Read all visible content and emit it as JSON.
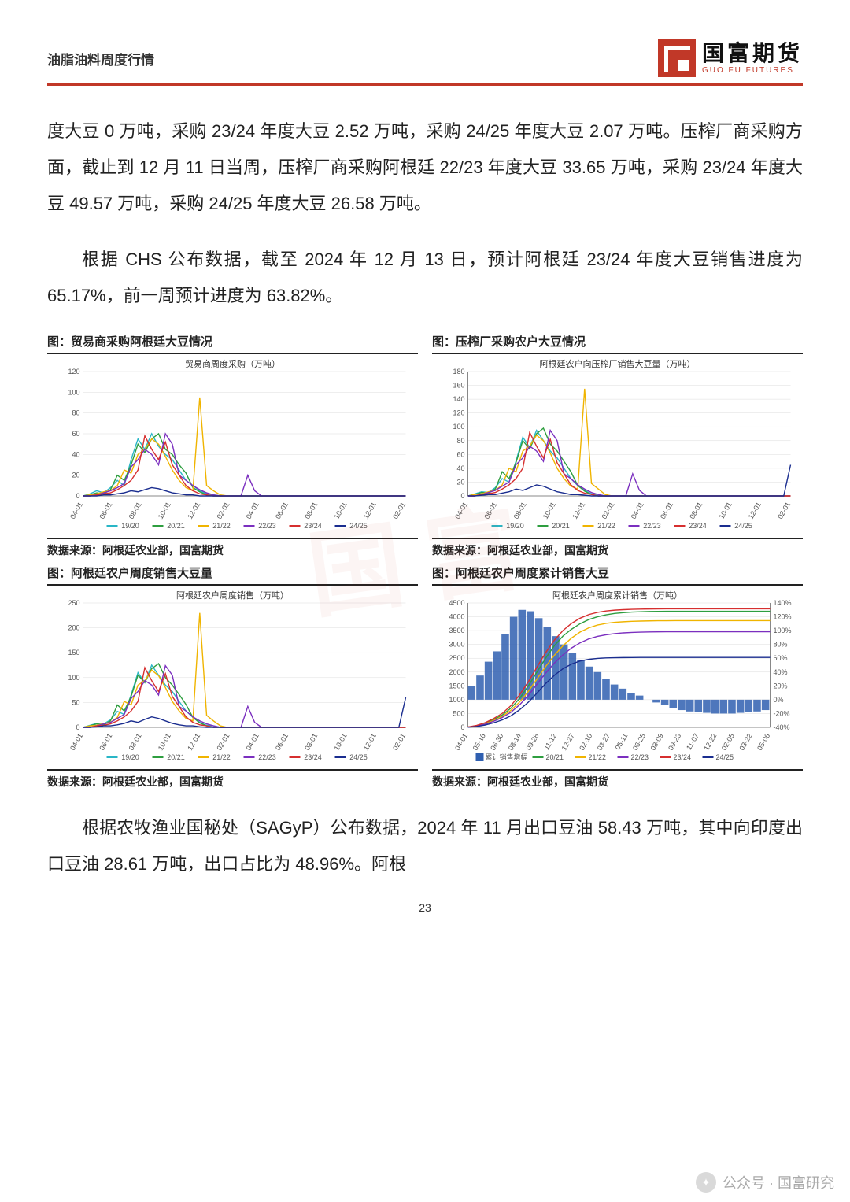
{
  "header": {
    "title": "油脂油料周度行情"
  },
  "logo": {
    "cn": "国富期货",
    "en": "GUO FU FUTURES"
  },
  "paragraphs": {
    "p1": "度大豆 0 万吨，采购 23/24 年度大豆 2.52 万吨，采购 24/25 年度大豆 2.07 万吨。压榨厂商采购方面，截止到 12 月 11 日当周，压榨厂商采购阿根廷 22/23 年度大豆 33.65 万吨，采购 23/24 年度大豆 49.57 万吨，采购 24/25 年度大豆 26.58 万吨。",
    "p2": "根据 CHS 公布数据，截至 2024 年 12 月 13 日，预计阿根廷 23/24 年度大豆销售进度为 65.17%，前一周预计进度为 63.82%。",
    "p3": "根据农牧渔业国秘处（SAGyP）公布数据，2024 年 11 月出口豆油 58.43 万吨，其中向印度出口豆油 28.61 万吨，出口占比为 48.96%。阿根"
  },
  "sourceLabel": "数据来源：阿根廷农业部，国富期货",
  "seriesColors": {
    "s1920": "#29b6c6",
    "s2021": "#2e9e3f",
    "s2122": "#f0b400",
    "s2223": "#7b2fbf",
    "s2324": "#d62f2f",
    "s2425": "#1a2d8f"
  },
  "seriesLabels": [
    "19/20",
    "20/21",
    "21/22",
    "22/23",
    "23/24",
    "24/25"
  ],
  "xTicks": [
    "04-01",
    "06-01",
    "08-01",
    "10-01",
    "12-01",
    "02-01",
    "04-01",
    "06-01",
    "08-01",
    "10-01",
    "12-01",
    "02-01"
  ],
  "chart1": {
    "title": "图：贸易商采购阿根廷大豆情况",
    "subtitle": "贸易商周度采购（万吨）",
    "ylim": [
      0,
      120
    ],
    "ytick": 20,
    "data": {
      "s1920": [
        0,
        2,
        5,
        3,
        8,
        15,
        10,
        35,
        55,
        45,
        60,
        48,
        40,
        35,
        25,
        15,
        10,
        5,
        2,
        1,
        0,
        0,
        0,
        0,
        0,
        0,
        0,
        0,
        0,
        0,
        0,
        0,
        0,
        0,
        0,
        0,
        0,
        0,
        0,
        0,
        0,
        0,
        0,
        0,
        0,
        0,
        0,
        0
      ],
      "s2021": [
        0,
        1,
        3,
        2,
        6,
        20,
        15,
        30,
        50,
        42,
        55,
        60,
        45,
        40,
        30,
        22,
        8,
        4,
        1,
        0,
        0,
        0,
        0,
        0,
        0,
        0,
        0,
        0,
        0,
        0,
        0,
        0,
        0,
        0,
        0,
        0,
        0,
        0,
        0,
        0,
        0,
        0,
        0,
        0,
        0,
        0,
        0,
        0
      ],
      "s2122": [
        0,
        1,
        2,
        4,
        5,
        10,
        25,
        22,
        40,
        45,
        55,
        50,
        38,
        25,
        15,
        8,
        5,
        95,
        10,
        5,
        1,
        0,
        0,
        0,
        0,
        0,
        0,
        0,
        0,
        0,
        0,
        0,
        0,
        0,
        0,
        0,
        0,
        0,
        0,
        0,
        0,
        0,
        0,
        0,
        0,
        0,
        0,
        0
      ],
      "s2223": [
        0,
        0,
        1,
        3,
        5,
        8,
        12,
        28,
        35,
        45,
        40,
        30,
        60,
        50,
        20,
        15,
        10,
        6,
        3,
        1,
        0,
        0,
        0,
        0,
        20,
        5,
        0,
        0,
        0,
        0,
        0,
        0,
        0,
        0,
        0,
        0,
        0,
        0,
        0,
        0,
        0,
        0,
        0,
        0,
        0,
        0,
        0,
        0
      ],
      "s2324": [
        0,
        0,
        1,
        2,
        3,
        6,
        10,
        15,
        25,
        58,
        45,
        35,
        52,
        30,
        20,
        10,
        5,
        2,
        1,
        0,
        0,
        0,
        0,
        0,
        0,
        0,
        0,
        0,
        0,
        0,
        0,
        0,
        0,
        0,
        0,
        0,
        0,
        0,
        0,
        0,
        0,
        0,
        0,
        0,
        0,
        0,
        0,
        0
      ],
      "s2425": [
        0,
        0,
        0,
        1,
        1,
        2,
        3,
        5,
        4,
        6,
        8,
        7,
        5,
        3,
        2,
        1,
        1,
        0,
        0,
        0,
        0,
        0,
        0,
        0,
        0,
        0,
        0,
        0,
        0,
        0,
        0,
        0,
        0,
        0,
        0,
        0,
        0,
        0,
        0,
        0,
        0,
        0,
        0,
        0,
        0,
        0,
        0,
        0
      ]
    }
  },
  "chart2": {
    "title": "图：压榨厂采购农户大豆情况",
    "subtitle": "阿根廷农户向压榨厂销售大豆量（万吨）",
    "ylim": [
      0,
      180
    ],
    "ytick": 20,
    "data": {
      "s1920": [
        0,
        3,
        6,
        5,
        12,
        25,
        20,
        50,
        85,
        70,
        95,
        80,
        65,
        55,
        40,
        25,
        15,
        8,
        3,
        2,
        0,
        0,
        0,
        0,
        0,
        0,
        0,
        0,
        0,
        0,
        0,
        0,
        0,
        0,
        0,
        0,
        0,
        0,
        0,
        0,
        0,
        0,
        0,
        0,
        0,
        0,
        0,
        0
      ],
      "s2021": [
        0,
        2,
        5,
        4,
        10,
        35,
        25,
        48,
        80,
        68,
        90,
        98,
        75,
        65,
        50,
        35,
        15,
        7,
        2,
        0,
        0,
        0,
        0,
        0,
        0,
        0,
        0,
        0,
        0,
        0,
        0,
        0,
        0,
        0,
        0,
        0,
        0,
        0,
        0,
        0,
        0,
        0,
        0,
        0,
        0,
        0,
        0,
        0
      ],
      "s2122": [
        0,
        2,
        3,
        6,
        8,
        16,
        40,
        35,
        65,
        72,
        88,
        80,
        62,
        40,
        25,
        14,
        10,
        155,
        18,
        10,
        2,
        0,
        0,
        0,
        0,
        0,
        0,
        0,
        0,
        0,
        0,
        0,
        0,
        0,
        0,
        0,
        0,
        0,
        0,
        0,
        0,
        0,
        0,
        0,
        0,
        0,
        0,
        0
      ],
      "s2223": [
        0,
        0,
        2,
        5,
        8,
        14,
        20,
        45,
        55,
        72,
        65,
        50,
        95,
        80,
        32,
        25,
        16,
        10,
        5,
        2,
        0,
        0,
        0,
        0,
        32,
        8,
        0,
        0,
        0,
        0,
        0,
        0,
        0,
        0,
        0,
        0,
        0,
        0,
        0,
        0,
        0,
        0,
        0,
        0,
        0,
        0,
        0,
        0
      ],
      "s2324": [
        0,
        0,
        2,
        3,
        5,
        10,
        16,
        25,
        40,
        92,
        72,
        55,
        82,
        48,
        32,
        16,
        8,
        4,
        2,
        0,
        0,
        0,
        0,
        0,
        0,
        0,
        0,
        0,
        0,
        0,
        0,
        0,
        0,
        0,
        0,
        0,
        0,
        0,
        0,
        0,
        0,
        0,
        0,
        0,
        0,
        0,
        0,
        0
      ],
      "s2425": [
        0,
        0,
        1,
        2,
        2,
        4,
        6,
        10,
        8,
        12,
        16,
        14,
        10,
        6,
        4,
        2,
        2,
        1,
        0,
        0,
        0,
        0,
        0,
        0,
        0,
        0,
        0,
        0,
        0,
        0,
        0,
        0,
        0,
        0,
        0,
        0,
        0,
        0,
        0,
        0,
        0,
        0,
        0,
        0,
        0,
        0,
        0,
        45
      ]
    }
  },
  "chart3": {
    "title": "图：阿根廷农户周度销售大豆量",
    "subtitle": "阿根廷农户周度销售（万吨）",
    "ylim": [
      0,
      250
    ],
    "ytick": 50,
    "data": {
      "s1920": [
        0,
        4,
        8,
        7,
        15,
        32,
        26,
        65,
        110,
        90,
        125,
        105,
        85,
        72,
        52,
        33,
        20,
        10,
        4,
        3,
        0,
        0,
        0,
        0,
        0,
        0,
        0,
        0,
        0,
        0,
        0,
        0,
        0,
        0,
        0,
        0,
        0,
        0,
        0,
        0,
        0,
        0,
        0,
        0,
        0,
        0,
        0,
        0
      ],
      "s2021": [
        0,
        3,
        7,
        5,
        13,
        45,
        33,
        62,
        105,
        90,
        118,
        128,
        100,
        85,
        66,
        46,
        20,
        9,
        3,
        0,
        0,
        0,
        0,
        0,
        0,
        0,
        0,
        0,
        0,
        0,
        0,
        0,
        0,
        0,
        0,
        0,
        0,
        0,
        0,
        0,
        0,
        0,
        0,
        0,
        0,
        0,
        0,
        0
      ],
      "s2122": [
        0,
        3,
        4,
        8,
        10,
        20,
        52,
        45,
        85,
        94,
        115,
        104,
        80,
        52,
        33,
        18,
        13,
        230,
        24,
        13,
        3,
        0,
        0,
        0,
        0,
        0,
        0,
        0,
        0,
        0,
        0,
        0,
        0,
        0,
        0,
        0,
        0,
        0,
        0,
        0,
        0,
        0,
        0,
        0,
        0,
        0,
        0,
        0
      ],
      "s2223": [
        0,
        0,
        3,
        7,
        10,
        18,
        26,
        58,
        72,
        94,
        85,
        65,
        124,
        105,
        42,
        33,
        21,
        13,
        7,
        3,
        0,
        0,
        0,
        0,
        42,
        10,
        0,
        0,
        0,
        0,
        0,
        0,
        0,
        0,
        0,
        0,
        0,
        0,
        0,
        0,
        0,
        0,
        0,
        0,
        0,
        0,
        0,
        0
      ],
      "s2324": [
        0,
        0,
        3,
        4,
        7,
        13,
        21,
        33,
        52,
        120,
        94,
        72,
        108,
        62,
        42,
        21,
        10,
        5,
        3,
        0,
        0,
        0,
        0,
        0,
        0,
        0,
        0,
        0,
        0,
        0,
        0,
        0,
        0,
        0,
        0,
        0,
        0,
        0,
        0,
        0,
        0,
        0,
        0,
        0,
        0,
        0,
        0,
        0
      ],
      "s2425": [
        0,
        0,
        1,
        3,
        3,
        5,
        8,
        13,
        10,
        16,
        21,
        18,
        13,
        8,
        5,
        3,
        3,
        1,
        0,
        0,
        0,
        0,
        0,
        0,
        0,
        0,
        0,
        0,
        0,
        0,
        0,
        0,
        0,
        0,
        0,
        0,
        0,
        0,
        0,
        0,
        0,
        0,
        0,
        0,
        0,
        0,
        0,
        60
      ]
    }
  },
  "chart4": {
    "title": "图：阿根廷农户周度累计销售大豆",
    "subtitle": "阿根廷农户周度累计销售（万吨）",
    "ylim": [
      0,
      4500
    ],
    "ytick": 500,
    "ylim2": [
      -40,
      140
    ],
    "ytick2": 20,
    "xTicks": [
      "04-01",
      "05-16",
      "06-30",
      "08-14",
      "09-28",
      "11-12",
      "12-27",
      "02-10",
      "03-27",
      "05-11",
      "06-25",
      "08-09",
      "09-23",
      "11-07",
      "12-22",
      "02-05",
      "03-22",
      "05-06"
    ],
    "barLabel": "累计销售增幅",
    "bars": [
      20,
      35,
      55,
      70,
      95,
      120,
      130,
      128,
      118,
      105,
      92,
      80,
      68,
      58,
      48,
      40,
      30,
      22,
      16,
      10,
      6,
      0,
      -4,
      -8,
      -12,
      -15,
      -17,
      -18,
      -19,
      -20,
      -20,
      -20,
      -19,
      -18,
      -17,
      -15
    ],
    "lines": {
      "s2021": [
        10,
        60,
        150,
        280,
        450,
        700,
        1050,
        1500,
        2000,
        2500,
        2950,
        3300,
        3550,
        3750,
        3900,
        4000,
        4070,
        4120,
        4150,
        4170,
        4180,
        4190,
        4195,
        4198,
        4200,
        4200,
        4200,
        4200,
        4200,
        4200,
        4200,
        4200,
        4200,
        4200,
        4200,
        4200
      ],
      "s2122": [
        8,
        50,
        130,
        250,
        400,
        620,
        920,
        1300,
        1750,
        2200,
        2600,
        2950,
        3230,
        3450,
        3600,
        3700,
        3760,
        3800,
        3820,
        3835,
        3845,
        3852,
        3856,
        3858,
        3860,
        3860,
        3860,
        3860,
        3860,
        3860,
        3860,
        3860,
        3860,
        3860,
        3860,
        3860
      ],
      "s2223": [
        7,
        45,
        115,
        220,
        360,
        550,
        820,
        1150,
        1560,
        1960,
        2320,
        2620,
        2870,
        3060,
        3200,
        3290,
        3350,
        3390,
        3418,
        3435,
        3445,
        3452,
        3456,
        3458,
        3460,
        3460,
        3460,
        3460,
        3460,
        3460,
        3460,
        3460,
        3460,
        3460,
        3460,
        3460
      ],
      "s2324": [
        12,
        70,
        170,
        320,
        510,
        790,
        1180,
        1650,
        2180,
        2700,
        3150,
        3500,
        3760,
        3950,
        4080,
        4160,
        4210,
        4240,
        4258,
        4270,
        4278,
        4283,
        4286,
        4288,
        4290,
        4290,
        4290,
        4290,
        4290,
        4290,
        4290,
        4290,
        4290,
        4290,
        4290,
        4290
      ],
      "s2425": [
        5,
        30,
        85,
        165,
        270,
        420,
        640,
        910,
        1240,
        1580,
        1880,
        2120,
        2290,
        2400,
        2460,
        2495,
        2512,
        2520,
        2524,
        2527,
        2529,
        2530,
        2530,
        2530,
        2530,
        2530,
        2530,
        2530,
        2530,
        2530,
        2530,
        2530,
        2530,
        2530,
        2530,
        2530
      ]
    },
    "barColor": "#2f5fb0"
  },
  "pageNumber": "23",
  "footerCredit": "公众号 · 国富研究"
}
